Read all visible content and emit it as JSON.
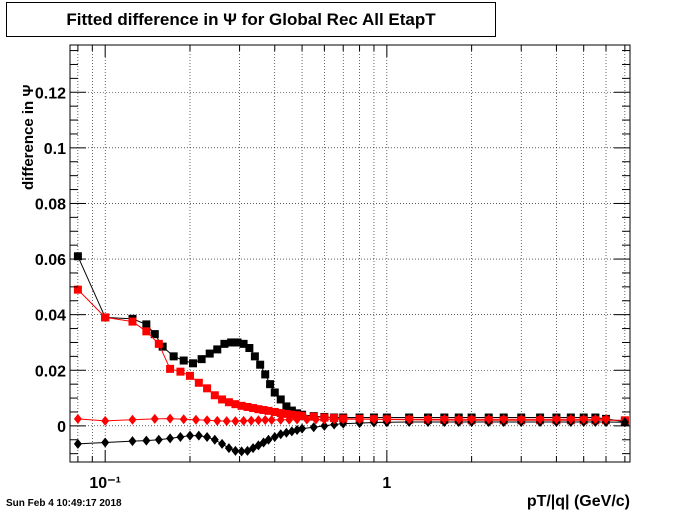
{
  "chart_data": {
    "type": "scatter",
    "title": "Fitted difference in  Ψ  for Global Rec All EtapT",
    "xlabel": "pT/|q| (GeV/c)",
    "ylabel": "difference in  Ψ",
    "xscale": "log",
    "xlim": [
      0.075,
      7.3
    ],
    "ylim": [
      -0.013,
      0.137
    ],
    "yticks": [
      0,
      0.02,
      0.04,
      0.06,
      0.08,
      0.1,
      0.12
    ],
    "ytick_labels": [
      "0",
      "0.02",
      "0.04",
      "0.06",
      "0.08",
      "0.1",
      "0.12"
    ],
    "xticks": [
      0.1,
      1
    ],
    "xtick_labels": [
      "10⁻¹",
      "1"
    ],
    "grid": true,
    "timestamp": "Sun Feb  4 10:49:17 2018",
    "series": [
      {
        "color": "#000000",
        "marker": "square",
        "x": [
          0.08,
          0.1,
          0.125,
          0.14,
          0.15,
          0.16,
          0.175,
          0.19,
          0.205,
          0.22,
          0.235,
          0.25,
          0.265,
          0.28,
          0.295,
          0.31,
          0.325,
          0.34,
          0.355,
          0.37,
          0.385,
          0.4,
          0.42,
          0.44,
          0.46,
          0.48,
          0.5,
          0.55,
          0.6,
          0.65,
          0.7,
          0.8,
          0.9,
          1.0,
          1.2,
          1.4,
          1.6,
          1.8,
          2.0,
          2.3,
          2.6,
          3.0,
          3.5,
          4.0,
          4.5,
          5.0,
          5.5,
          6.0,
          7.0
        ],
        "y": [
          0.061,
          0.039,
          0.0385,
          0.0365,
          0.033,
          0.0285,
          0.025,
          0.0235,
          0.0225,
          0.024,
          0.026,
          0.0275,
          0.0295,
          0.03,
          0.03,
          0.0295,
          0.028,
          0.025,
          0.022,
          0.0185,
          0.015,
          0.012,
          0.0095,
          0.007,
          0.0055,
          0.0045,
          0.004,
          0.0035,
          0.0032,
          0.003,
          0.003,
          0.003,
          0.003,
          0.003,
          0.003,
          0.003,
          0.003,
          0.003,
          0.003,
          0.003,
          0.003,
          0.003,
          0.003,
          0.003,
          0.003,
          0.003,
          0.003,
          0.0025,
          0.0015
        ]
      },
      {
        "color": "#ff0000",
        "marker": "square",
        "x": [
          0.08,
          0.1,
          0.125,
          0.14,
          0.155,
          0.17,
          0.185,
          0.2,
          0.215,
          0.23,
          0.245,
          0.26,
          0.275,
          0.29,
          0.305,
          0.32,
          0.335,
          0.35,
          0.365,
          0.38,
          0.4,
          0.42,
          0.44,
          0.46,
          0.48,
          0.5,
          0.55,
          0.6,
          0.65,
          0.7,
          0.8,
          0.9,
          1.0,
          1.2,
          1.4,
          1.6,
          1.8,
          2.0,
          2.3,
          2.6,
          3.0,
          3.5,
          4.0,
          4.5,
          5.0,
          5.5,
          6.0,
          7.0
        ],
        "y": [
          0.049,
          0.039,
          0.0375,
          0.034,
          0.0295,
          0.0205,
          0.0195,
          0.018,
          0.0155,
          0.0135,
          0.011,
          0.0095,
          0.0085,
          0.0078,
          0.0072,
          0.0068,
          0.0064,
          0.006,
          0.0057,
          0.0054,
          0.005,
          0.0046,
          0.0043,
          0.004,
          0.0038,
          0.0036,
          0.0033,
          0.003,
          0.0028,
          0.0026,
          0.0025,
          0.0024,
          0.0023,
          0.0022,
          0.0021,
          0.0021,
          0.002,
          0.002,
          0.002,
          0.002,
          0.002,
          0.002,
          0.002,
          0.002,
          0.002,
          0.002,
          0.002,
          0.002
        ]
      },
      {
        "color": "#000000",
        "marker": "diamond",
        "x": [
          0.08,
          0.1,
          0.125,
          0.14,
          0.155,
          0.17,
          0.185,
          0.2,
          0.215,
          0.23,
          0.245,
          0.26,
          0.275,
          0.29,
          0.305,
          0.32,
          0.335,
          0.35,
          0.365,
          0.38,
          0.4,
          0.42,
          0.44,
          0.46,
          0.48,
          0.5,
          0.55,
          0.6,
          0.65,
          0.7,
          0.8,
          0.9,
          1.0,
          1.2,
          1.4,
          1.6,
          1.8,
          2.0,
          2.3,
          2.6,
          3.0,
          3.5,
          4.0,
          4.5,
          5.0,
          5.5,
          6.0,
          7.0
        ],
        "y": [
          -0.0065,
          -0.006,
          -0.0055,
          -0.0053,
          -0.005,
          -0.0045,
          -0.004,
          -0.0035,
          -0.0035,
          -0.004,
          -0.005,
          -0.0065,
          -0.008,
          -0.009,
          -0.0092,
          -0.009,
          -0.008,
          -0.007,
          -0.006,
          -0.005,
          -0.004,
          -0.003,
          -0.0025,
          -0.002,
          -0.0015,
          -0.001,
          -0.0005,
          0,
          0.0005,
          0.0008,
          0.001,
          0.0012,
          0.0013,
          0.0014,
          0.0014,
          0.0014,
          0.0014,
          0.0014,
          0.0014,
          0.0014,
          0.0014,
          0.0014,
          0.0014,
          0.0014,
          0.0014,
          0.0014,
          0.0014,
          0.0013
        ]
      },
      {
        "color": "#ff0000",
        "marker": "diamond",
        "x": [
          0.08,
          0.1,
          0.125,
          0.15,
          0.17,
          0.19,
          0.21,
          0.23,
          0.25,
          0.27,
          0.29,
          0.31,
          0.33,
          0.35,
          0.37,
          0.39,
          0.42,
          0.45,
          0.48,
          0.52,
          0.56,
          0.6,
          0.65,
          0.7,
          0.8,
          0.9,
          1.0,
          1.2,
          1.4,
          1.6,
          1.8,
          2.0,
          2.3,
          2.6,
          3.0,
          3.5,
          4.0,
          4.5,
          5.0,
          5.5,
          6.0
        ],
        "y": [
          0.0025,
          0.0018,
          0.0022,
          0.0025,
          0.0026,
          0.0024,
          0.0022,
          0.002,
          0.0018,
          0.0017,
          0.0017,
          0.0018,
          0.0019,
          0.002,
          0.0021,
          0.0021,
          0.0022,
          0.0022,
          0.0023,
          0.0023,
          0.0023,
          0.0023,
          0.0024,
          0.0024,
          0.0024,
          0.0024,
          0.0024,
          0.0024,
          0.0024,
          0.0024,
          0.0024,
          0.0024,
          0.0024,
          0.0024,
          0.0024,
          0.0024,
          0.0024,
          0.0024,
          0.0024,
          0.0024,
          0.0024
        ]
      }
    ]
  }
}
